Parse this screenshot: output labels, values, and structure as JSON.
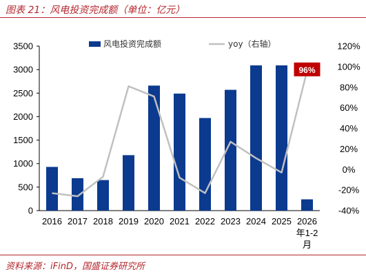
{
  "header": {
    "title": "图表 21：风电投资完成额（单位：亿元）"
  },
  "footer": {
    "source": "资料来源：iFinD，国盛证券研究所"
  },
  "chart_data": {
    "type": "bar",
    "title": "",
    "categories": [
      "2016",
      "2017",
      "2018",
      "2019",
      "2020",
      "2021",
      "2022",
      "2023",
      "2024",
      "2025",
      "2026年1-2月"
    ],
    "category_lines": [
      [
        "2016"
      ],
      [
        "2017"
      ],
      [
        "2018"
      ],
      [
        "2019"
      ],
      [
        "2020"
      ],
      [
        "2021"
      ],
      [
        "2022"
      ],
      [
        "2023"
      ],
      [
        "2024"
      ],
      [
        "2025"
      ],
      [
        "2026",
        "年1-2",
        "月"
      ]
    ],
    "series": [
      {
        "name": "风电投资完成额",
        "type": "bar",
        "axis": "left",
        "color": "#0b3a8f",
        "values": [
          930,
          690,
          650,
          1180,
          2660,
          2490,
          1970,
          2570,
          3090,
          3090,
          240
        ]
      },
      {
        "name": "yoy（右轴）",
        "type": "line",
        "axis": "right",
        "color": "#c0c0c0",
        "values": [
          -23,
          -26,
          -7,
          81,
          71,
          -8,
          -23,
          27,
          11,
          -3,
          96
        ]
      }
    ],
    "y_left": {
      "min": 0,
      "max": 3500,
      "ticks": [
        "0",
        "500",
        "1000",
        "1500",
        "2000",
        "2500",
        "3000",
        "3500"
      ]
    },
    "y_right": {
      "min": -40,
      "max": 120,
      "ticks": [
        "-40%",
        "-20%",
        "0%",
        "20%",
        "40%",
        "60%",
        "80%",
        "100%",
        "120%"
      ]
    },
    "annotation": {
      "text": "96%",
      "color": "#c00000",
      "index": 10
    },
    "legend": {
      "position": "top"
    }
  }
}
